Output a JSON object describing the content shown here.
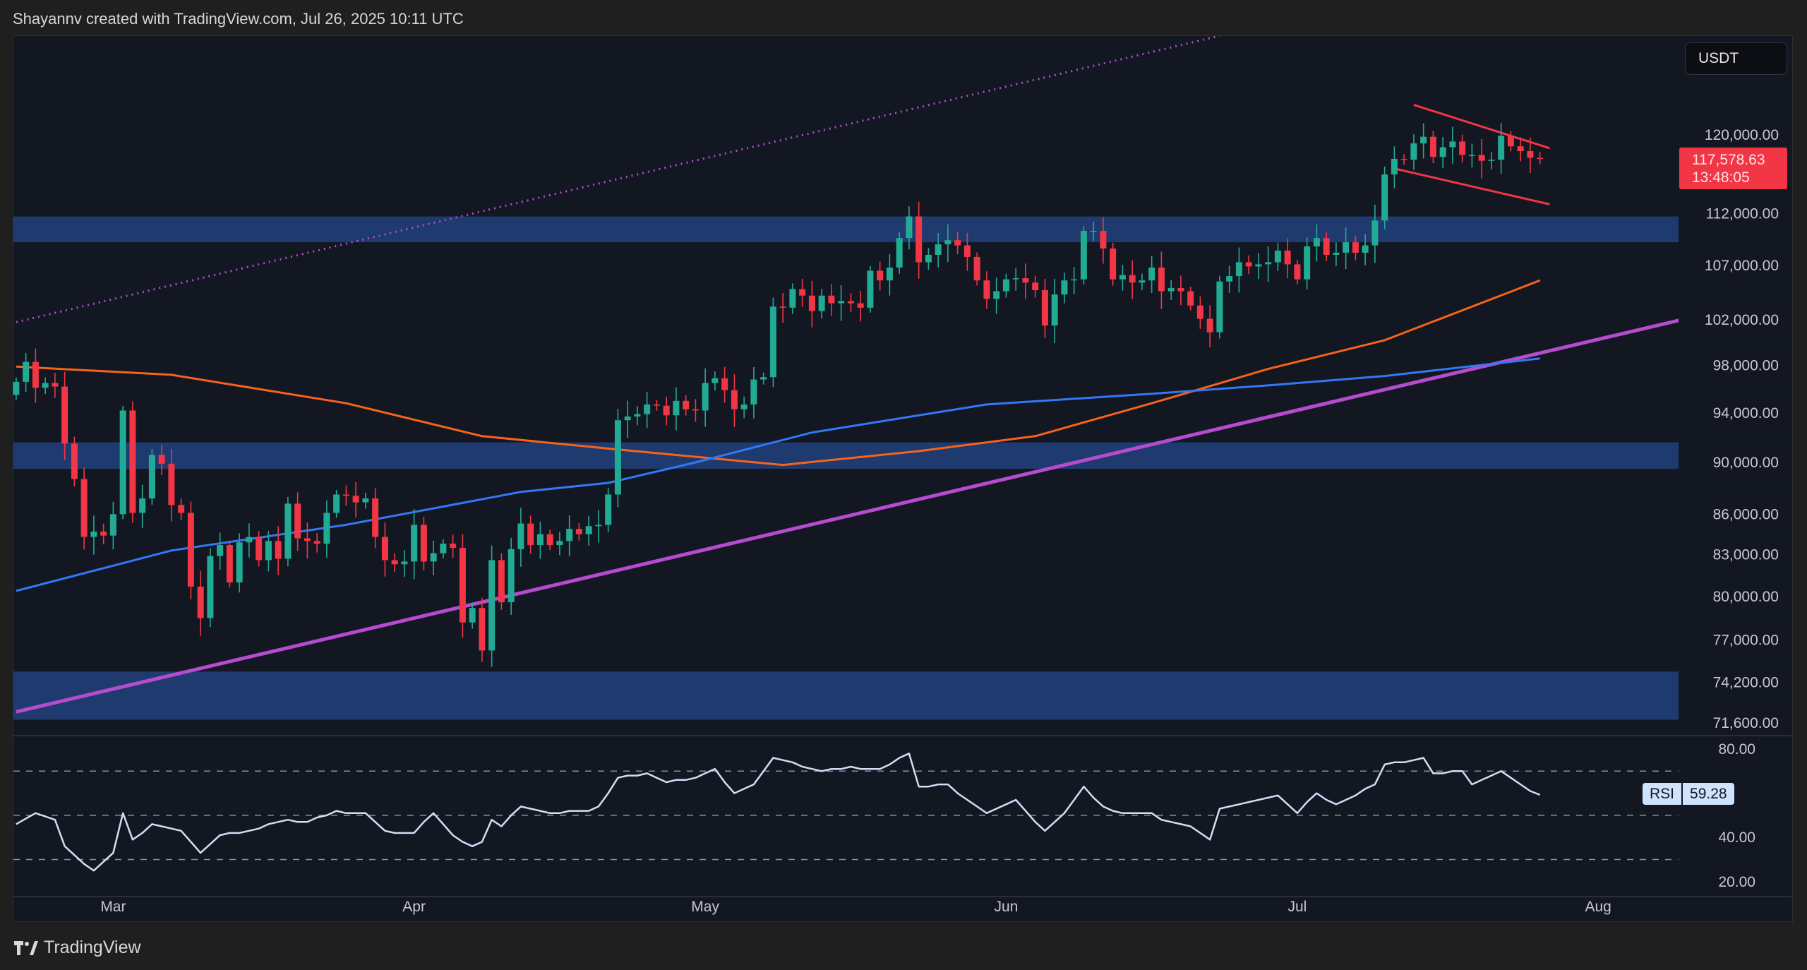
{
  "header": {
    "attribution": "Shayannv created with TradingView.com, Jul 26, 2025 10:11 UTC"
  },
  "footer": {
    "brand": "TradingView",
    "logo_icon": "tradingview-logo-icon"
  },
  "currency_button": "USDT",
  "price_badge": {
    "price": "117,578.63",
    "countdown": "13:48:05"
  },
  "rsi_badge": {
    "label": "RSI",
    "value": "59.28"
  },
  "colors": {
    "up": "#22ab94",
    "down": "#f23645",
    "ma_orange": "#f7631b",
    "ma_blue": "#3179f5",
    "trendline": "#b54ccf",
    "zone": "#1e3a6e",
    "rsi": "#d2ddf5",
    "flag": "#f23645"
  },
  "chart_data": [
    {
      "type": "candlestick",
      "interval": "1D",
      "start": "2025-02-19",
      "scale": "log",
      "ylim": [
        71600,
        131000
      ],
      "y_ticks": [
        "120,000.00",
        "112,000.00",
        "107,000.00",
        "102,000.00",
        "98,000.00",
        "94,000.00",
        "90,000.00",
        "86,000.00",
        "83,000.00",
        "80,000.00",
        "77,000.00",
        "74,200.00",
        "71,600.00"
      ],
      "x_ticks": [
        {
          "label": "Mar",
          "date": "2025-03-01"
        },
        {
          "label": "Apr",
          "date": "2025-04-01"
        },
        {
          "label": "May",
          "date": "2025-05-01"
        },
        {
          "label": "Jun",
          "date": "2025-06-01"
        },
        {
          "label": "Jul",
          "date": "2025-07-01"
        },
        {
          "label": "Aug",
          "date": "2025-08-01"
        }
      ],
      "close": [
        96600,
        98300,
        96100,
        96500,
        96200,
        91500,
        88700,
        84300,
        84700,
        84400,
        86000,
        94200,
        86100,
        87200,
        90600,
        89900,
        86700,
        86100,
        80700,
        78500,
        82900,
        83700,
        81000,
        83900,
        84300,
        82600,
        84000,
        82700,
        86800,
        84200,
        84000,
        83800,
        86100,
        87500,
        87400,
        86900,
        87200,
        84300,
        82600,
        82300,
        82500,
        85200,
        82500,
        83100,
        83800,
        83500,
        78200,
        79200,
        76300,
        82600,
        79600,
        83400,
        85300,
        83700,
        84500,
        83700,
        84000,
        84900,
        84500,
        85100,
        85200,
        87500,
        93400,
        93700,
        93900,
        94700,
        94600,
        93800,
        95000,
        94300,
        94200,
        96500,
        96900,
        95900,
        94300,
        94700,
        96800,
        97000,
        103200,
        103100,
        104800,
        104200,
        102800,
        104200,
        103500,
        103700,
        103500,
        103100,
        106500,
        105600,
        106800,
        109600,
        111700,
        107300,
        108000,
        109000,
        109400,
        108900,
        107800,
        105600,
        103900,
        104600,
        105700,
        105800,
        105400,
        104700,
        101500,
        104300,
        105600,
        105700,
        110300,
        110300,
        108600,
        105700,
        106100,
        105400,
        105600,
        106800,
        104600,
        104900,
        104600,
        103300,
        102100,
        100900,
        105500,
        106000,
        107300,
        106900,
        107100,
        107300,
        108400,
        107100,
        105700,
        108800,
        109600,
        108000,
        108200,
        109200,
        108200,
        108900,
        111300,
        115900,
        117500,
        117400,
        119100,
        119800,
        117700,
        118700,
        119300,
        117900,
        117900,
        117300,
        117400,
        119900,
        118800,
        118300,
        117600,
        117578.63
      ],
      "first_open": 95500,
      "zones": [
        [
          109200,
          111700
        ],
        [
          89500,
          91600
        ],
        [
          71800,
          74900
        ]
      ],
      "moving_averages": [
        {
          "color": "orange",
          "points": [
            [
              "2025-02-19",
              97900
            ],
            [
              "2025-03-07",
              97200
            ],
            [
              "2025-03-25",
              94800
            ],
            [
              "2025-04-08",
              92100
            ],
            [
              "2025-04-21",
              91100
            ],
            [
              "2025-05-09",
              89800
            ],
            [
              "2025-05-23",
              90900
            ],
            [
              "2025-06-04",
              92100
            ],
            [
              "2025-06-16",
              94800
            ],
            [
              "2025-06-28",
              97700
            ],
            [
              "2025-07-10",
              100200
            ],
            [
              "2025-07-26",
              105600
            ]
          ]
        },
        {
          "color": "blue",
          "points": [
            [
              "2025-02-19",
              80400
            ],
            [
              "2025-03-07",
              83300
            ],
            [
              "2025-03-25",
              85200
            ],
            [
              "2025-04-12",
              87700
            ],
            [
              "2025-04-21",
              88400
            ],
            [
              "2025-04-30",
              90000
            ],
            [
              "2025-05-12",
              92400
            ],
            [
              "2025-05-30",
              94700
            ],
            [
              "2025-06-16",
              95600
            ],
            [
              "2025-06-28",
              96300
            ],
            [
              "2025-07-10",
              97100
            ],
            [
              "2025-07-26",
              98600
            ]
          ]
        }
      ],
      "trendlines": [
        {
          "style": "solid",
          "from": [
            "2025-02-19",
            72300
          ],
          "to": [
            "2025-08-10",
            102100
          ]
        },
        {
          "style": "dotted",
          "from": [
            "2025-02-19",
            101800
          ],
          "to": [
            "2025-06-23",
            130900
          ]
        },
        {
          "style": "flag-top",
          "from": [
            "2025-07-13",
            123200
          ],
          "to": [
            "2025-07-27",
            118600
          ]
        },
        {
          "style": "flag-bottom",
          "from": [
            "2025-07-11",
            116500
          ],
          "to": [
            "2025-07-27",
            112900
          ]
        }
      ]
    },
    {
      "type": "line",
      "name": "RSI",
      "ylim": [
        20,
        80
      ],
      "y_ticks": [
        "80.00",
        "40.00",
        "20.00"
      ],
      "bands": [
        70,
        50,
        30
      ],
      "values": [
        46,
        48.5,
        51,
        49.5,
        48,
        36,
        32,
        28,
        25,
        29,
        33,
        51,
        39,
        42,
        46,
        45,
        44,
        43,
        38,
        33,
        37,
        41,
        42,
        42,
        43,
        44,
        46,
        47,
        48,
        47,
        47,
        49,
        50,
        52,
        51,
        51,
        51,
        47,
        43,
        42,
        42,
        42,
        47,
        51,
        46,
        41,
        38,
        36,
        38,
        48,
        45,
        50,
        54,
        53,
        52,
        51,
        51,
        52,
        52,
        52,
        54,
        60,
        67,
        68,
        68,
        69,
        67,
        65,
        66,
        66,
        67,
        69,
        71,
        65,
        60,
        62,
        64,
        70,
        76,
        75,
        74,
        72,
        71,
        70,
        71,
        71,
        72,
        71,
        71,
        71,
        73,
        76,
        78,
        63,
        63,
        64,
        64,
        60,
        57,
        54,
        51,
        53,
        55,
        57,
        52,
        47,
        43,
        47,
        51,
        57,
        63,
        58,
        54,
        52,
        51,
        51,
        51,
        51,
        48,
        47,
        46,
        45,
        42,
        39,
        53,
        54,
        55,
        56,
        57,
        58,
        59,
        55,
        51,
        56,
        60,
        57,
        55,
        57,
        59,
        62,
        64,
        73,
        74,
        74,
        75,
        76,
        69,
        69,
        70,
        70,
        64,
        66,
        68,
        70,
        67,
        64,
        61,
        59.28
      ]
    }
  ]
}
